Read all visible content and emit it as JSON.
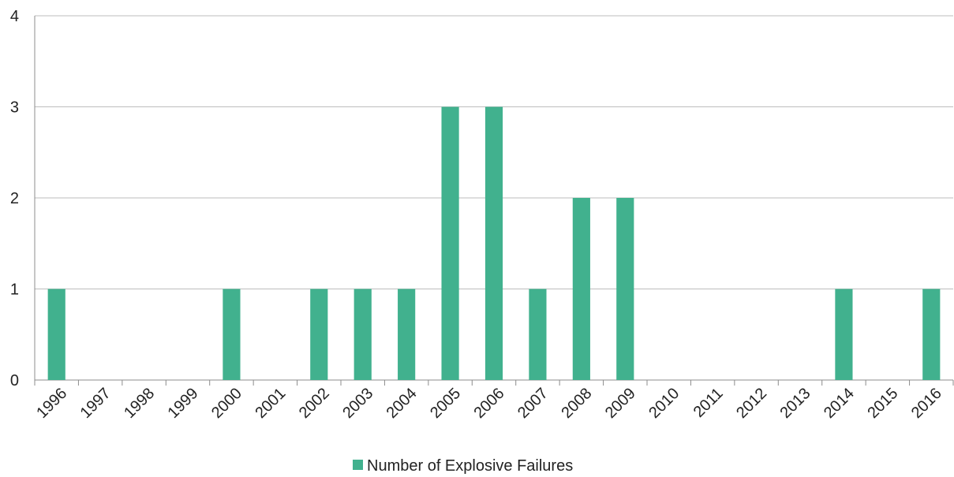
{
  "chart_data": {
    "type": "bar",
    "categories": [
      "1996",
      "1997",
      "1998",
      "1999",
      "2000",
      "2001",
      "2002",
      "2003",
      "2004",
      "2005",
      "2006",
      "2007",
      "2008",
      "2009",
      "2010",
      "2011",
      "2012",
      "2013",
      "2014",
      "2015",
      "2016"
    ],
    "series": [
      {
        "name": "Number of Explosive Failures",
        "color": "#41b18e",
        "values": [
          1,
          0,
          0,
          0,
          1,
          0,
          1,
          1,
          1,
          3,
          3,
          1,
          2,
          2,
          0,
          0,
          0,
          0,
          1,
          0,
          1
        ]
      }
    ],
    "ylim": [
      0,
      4
    ],
    "yticks": [
      0,
      1,
      2,
      3,
      4
    ],
    "grid": true,
    "legend": "bottom"
  }
}
